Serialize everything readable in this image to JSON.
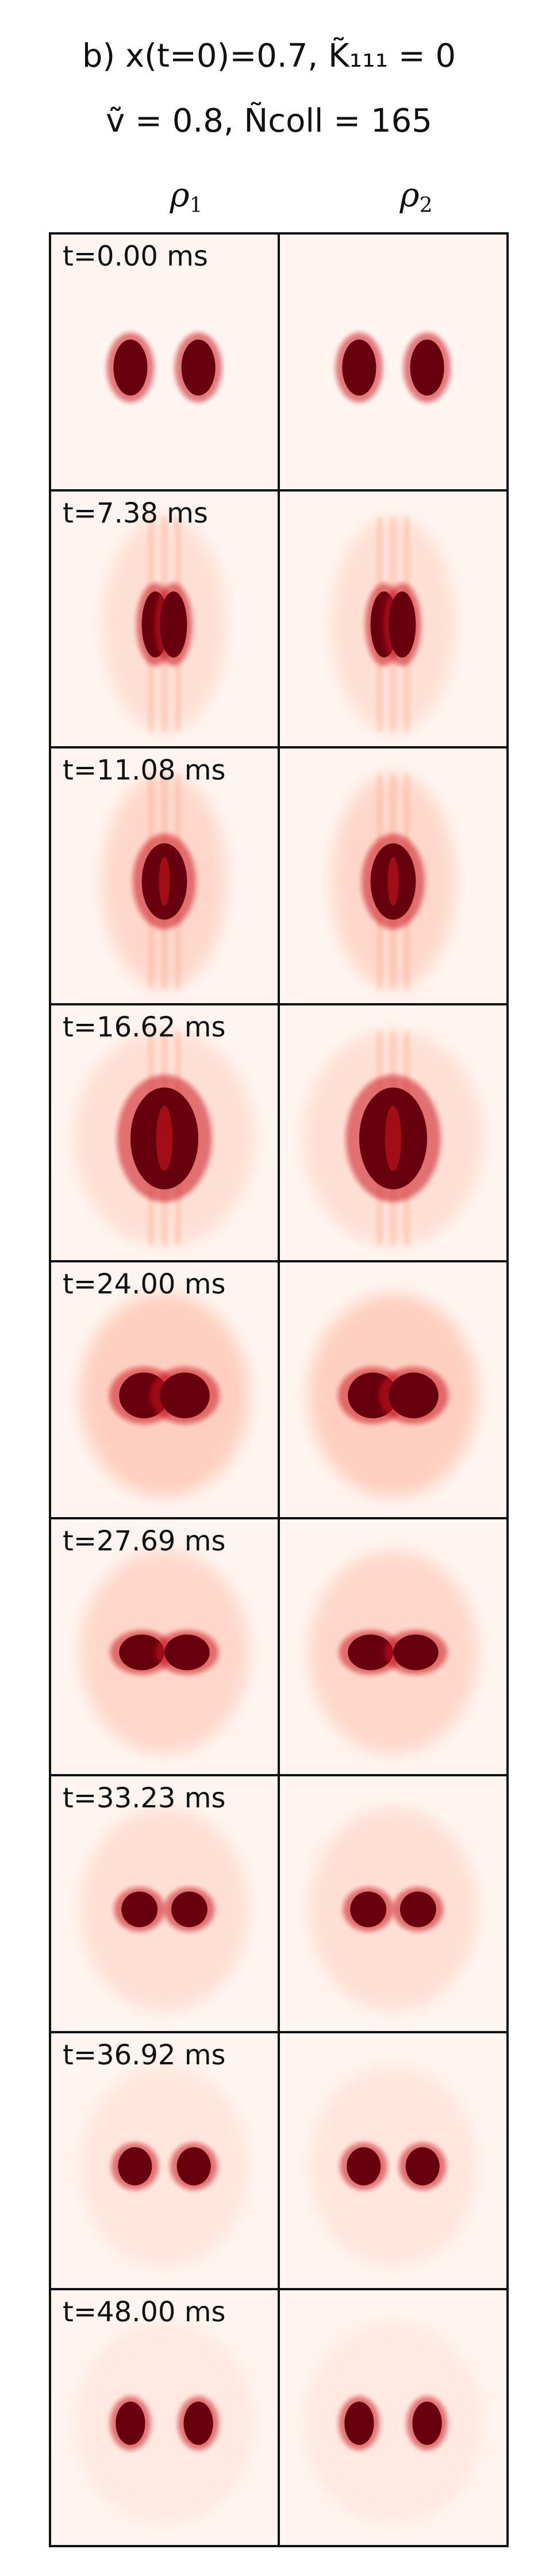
{
  "title": {
    "line1": "b) x(t=0)=0.7, K̃₁₁₁ = 0",
    "line2": "ṽ = 0.8, Ñcoll = 165"
  },
  "columns": [
    "ρ1",
    "ρ2"
  ],
  "timesteps": [
    {
      "label": "t=0.00 ms",
      "sep": 0.3,
      "w": 0.15,
      "h": 0.22,
      "halo_w": 0.0,
      "halo_h": 0.0,
      "halo_o": 0.0,
      "stripes": 0,
      "merged": false
    },
    {
      "label": "t=7.38 ms",
      "sep": 0.08,
      "w": 0.12,
      "h": 0.26,
      "halo_w": 0.55,
      "halo_h": 0.85,
      "halo_o": 0.22,
      "stripes": 1,
      "merged": false
    },
    {
      "label": "t=11.08 ms",
      "sep": 0.0,
      "w": 0.2,
      "h": 0.3,
      "halo_w": 0.55,
      "halo_h": 0.85,
      "halo_o": 0.3,
      "stripes": 1,
      "merged": true
    },
    {
      "label": "t=16.62 ms",
      "sep": 0.0,
      "w": 0.3,
      "h": 0.4,
      "halo_w": 0.8,
      "halo_h": 0.85,
      "halo_o": 0.22,
      "stripes": 1,
      "merged": true
    },
    {
      "label": "t=24.00 ms",
      "sep": 0.18,
      "w": 0.22,
      "h": 0.18,
      "halo_w": 0.75,
      "halo_h": 0.8,
      "halo_o": 0.38,
      "stripes": 0,
      "merged": false
    },
    {
      "label": "t=27.69 ms",
      "sep": 0.2,
      "w": 0.2,
      "h": 0.14,
      "halo_w": 0.75,
      "halo_h": 0.8,
      "halo_o": 0.3,
      "stripes": 0,
      "merged": false
    },
    {
      "label": "t=33.23 ms",
      "sep": 0.22,
      "w": 0.16,
      "h": 0.14,
      "halo_w": 0.75,
      "halo_h": 0.8,
      "halo_o": 0.22,
      "stripes": 0,
      "merged": false
    },
    {
      "label": "t=36.92 ms",
      "sep": 0.26,
      "w": 0.15,
      "h": 0.15,
      "halo_w": 0.75,
      "halo_h": 0.8,
      "halo_o": 0.15,
      "stripes": 0,
      "merged": false
    },
    {
      "label": "t=48.00 ms",
      "sep": 0.3,
      "w": 0.13,
      "h": 0.17,
      "halo_w": 0.8,
      "halo_h": 0.8,
      "halo_o": 0.12,
      "stripes": 0,
      "merged": false
    }
  ],
  "colors": {
    "background": "#fff5f0",
    "core": "#67000d",
    "mid": "#cb181d",
    "light": "#fc9272",
    "frame": "#111111"
  }
}
